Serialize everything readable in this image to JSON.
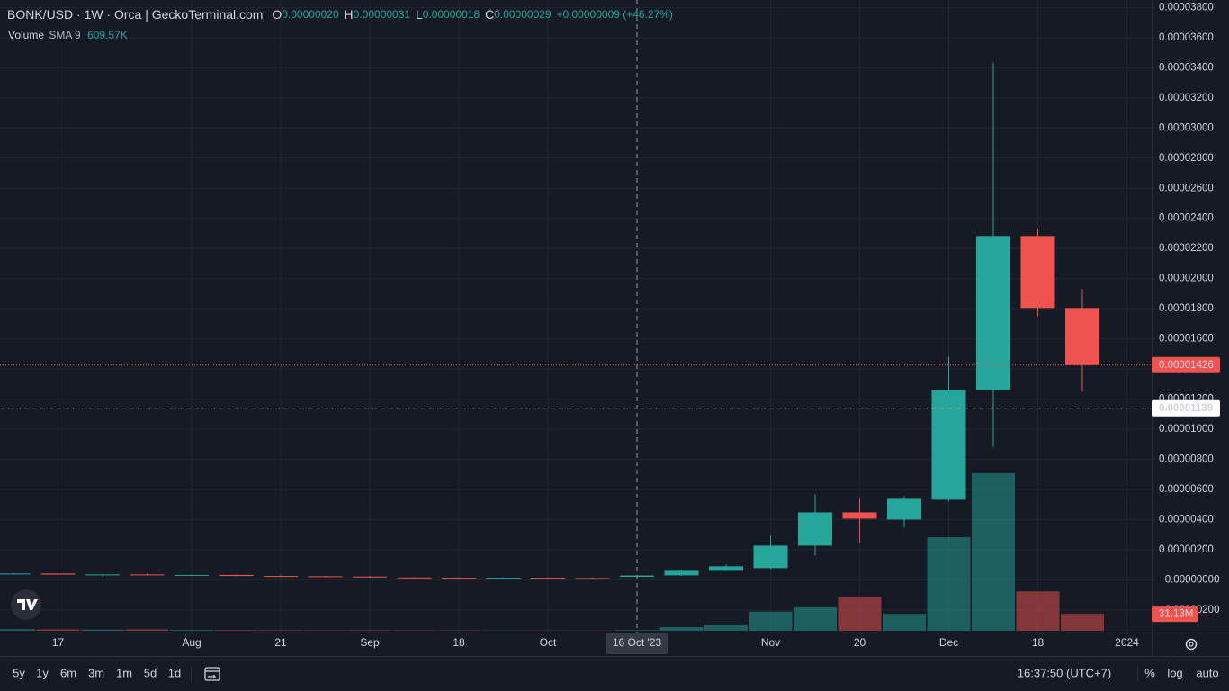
{
  "header": {
    "title": "BONK/USD · 1W · Orca | GeckoTerminal.com",
    "ohlc": [
      {
        "label": "O",
        "value": "0.00000020"
      },
      {
        "label": "H",
        "value": "0.00000031"
      },
      {
        "label": "L",
        "value": "0.00000018"
      },
      {
        "label": "C",
        "value": "0.00000029"
      }
    ],
    "change": "+0.00000009 (+46.27%)",
    "volume_legend": {
      "name": "Volume",
      "study": "SMA 9",
      "value": "609.57K"
    }
  },
  "chart_data": {
    "type": "candlestick",
    "categories": [
      null,
      "17",
      null,
      null,
      "Aug",
      null,
      "21",
      null,
      "Sep",
      null,
      "18",
      null,
      "Oct",
      null,
      null,
      null,
      null,
      "Nov",
      null,
      "20",
      null,
      "Dec",
      null,
      "18",
      null,
      "2024"
    ],
    "candles": [
      {
        "open": 4e-07,
        "high": 4.5e-07,
        "low": 3.5e-07,
        "close": 4.2e-07
      },
      {
        "open": 4.2e-07,
        "high": 4.5e-07,
        "low": 3e-07,
        "close": 3.5e-07
      },
      {
        "open": 3.5e-07,
        "high": 4e-07,
        "low": 2e-07,
        "close": 3.6e-07
      },
      {
        "open": 3.6e-07,
        "high": 4.2e-07,
        "low": 3e-07,
        "close": 3.2e-07
      },
      {
        "open": 3.2e-07,
        "high": 3.6e-07,
        "low": 2.8e-07,
        "close": 3.3e-07
      },
      {
        "open": 3.3e-07,
        "high": 3.6e-07,
        "low": 2.4e-07,
        "close": 2.6e-07
      },
      {
        "open": 2.6e-07,
        "high": 3e-07,
        "low": 2.2e-07,
        "close": 2.4e-07
      },
      {
        "open": 2.4e-07,
        "high": 2.7e-07,
        "low": 2e-07,
        "close": 2.2e-07
      },
      {
        "open": 2.2e-07,
        "high": 2.5e-07,
        "low": 1.4e-07,
        "close": 1.6e-07
      },
      {
        "open": 1.6e-07,
        "high": 1.9e-07,
        "low": 1.2e-07,
        "close": 1.4e-07
      },
      {
        "open": 1.4e-07,
        "high": 1.7e-07,
        "low": 1.1e-07,
        "close": 1.3e-07
      },
      {
        "open": 1.3e-07,
        "high": 1.6e-07,
        "low": 1e-07,
        "close": 1.4e-07
      },
      {
        "open": 1.4e-07,
        "high": 1.6e-07,
        "low": 1e-07,
        "close": 1.2e-07
      },
      {
        "open": 1.2e-07,
        "high": 1.5e-07,
        "low": 9e-08,
        "close": 1.1e-07
      },
      {
        "open": 2e-07,
        "high": 3.1e-07,
        "low": 1.8e-07,
        "close": 2.9e-07
      },
      {
        "open": 3e-07,
        "high": 6.8e-07,
        "low": 2.8e-07,
        "close": 6e-07
      },
      {
        "open": 6e-07,
        "high": 1.02e-06,
        "low": 5.8e-07,
        "close": 9e-07
      },
      {
        "open": 7.8e-07,
        "high": 2.93e-06,
        "low": 7e-07,
        "close": 2.27e-06
      },
      {
        "open": 2.27e-06,
        "high": 5.68e-06,
        "low": 1.61e-06,
        "close": 4.48e-06
      },
      {
        "open": 4.48e-06,
        "high": 5.38e-06,
        "low": 2.45e-06,
        "close": 4.06e-06
      },
      {
        "open": 4e-06,
        "high": 5.56e-06,
        "low": 3.47e-06,
        "close": 5.38e-06
      },
      {
        "open": 5.32e-06,
        "high": 1.482e-05,
        "low": 5.2e-06,
        "close": 1.261e-05
      },
      {
        "open": 1.261e-05,
        "high": 3.436e-05,
        "low": 8.84e-06,
        "close": 2.283e-05
      },
      {
        "open": 2.283e-05,
        "high": 2.331e-05,
        "low": 1.751e-05,
        "close": 1.805e-05
      },
      {
        "open": 1.805e-05,
        "high": 1.93e-05,
        "low": 1.249e-05,
        "close": 1.426e-05
      },
      null
    ],
    "volumes": [
      3000000,
      2500000,
      2000000,
      2500000,
      1500000,
      1200000,
      1000000,
      900000,
      1000000,
      800000,
      700000,
      600000,
      600000,
      500000,
      1200000,
      6600000,
      10000000,
      35000000,
      43000000,
      61000000,
      31000000,
      171000000,
      288000000,
      72000000,
      31130000,
      null
    ],
    "up_color": "#26a69a",
    "down_color": "#ef5350",
    "ylim": [
      -3.5e-06,
      3.85e-05
    ],
    "volume_ylim": [
      0,
      380000000
    ],
    "grid": true,
    "yticks": [
      {
        "value": -2e-06,
        "label": "−0.00000200"
      },
      {
        "value": 0,
        "label": "−0.00000000"
      },
      {
        "value": 2e-06,
        "label": "0.00000200"
      },
      {
        "value": 4e-06,
        "label": "0.00000400"
      },
      {
        "value": 6e-06,
        "label": "0.00000600"
      },
      {
        "value": 8e-06,
        "label": "0.00000800"
      },
      {
        "value": 1e-05,
        "label": "0.00001000"
      },
      {
        "value": 1.2e-05,
        "label": "0.00001200"
      },
      {
        "value": 1.4e-05,
        "label": "0.00001400"
      },
      {
        "value": 1.6e-05,
        "label": "0.00001600"
      },
      {
        "value": 1.8e-05,
        "label": "0.00001800"
      },
      {
        "value": 2e-05,
        "label": "0.00002000"
      },
      {
        "value": 2.2e-05,
        "label": "0.00002200"
      },
      {
        "value": 2.4e-05,
        "label": "0.00002400"
      },
      {
        "value": 2.6e-05,
        "label": "0.00002600"
      },
      {
        "value": 2.8e-05,
        "label": "0.00002800"
      },
      {
        "value": 3e-05,
        "label": "0.00003000"
      },
      {
        "value": 3.2e-05,
        "label": "0.00003200"
      },
      {
        "value": 3.4e-05,
        "label": "0.00003400"
      },
      {
        "value": 3.6e-05,
        "label": "0.00003600"
      },
      {
        "value": 3.8e-05,
        "label": "0.00003800"
      }
    ],
    "last_price": {
      "value": 1.426e-05,
      "label": "0.00001426"
    },
    "crosshair": {
      "x_label": "16 Oct '23",
      "price": {
        "value": 1.139e-05,
        "label": "0.00001139"
      }
    },
    "volume_badge": "31.13M"
  },
  "toolbar": {
    "ranges": [
      "5y",
      "1y",
      "6m",
      "3m",
      "1m",
      "5d",
      "1d"
    ],
    "time": "16:37:50 (UTC+7)",
    "options": [
      "%",
      "log",
      "auto"
    ]
  }
}
